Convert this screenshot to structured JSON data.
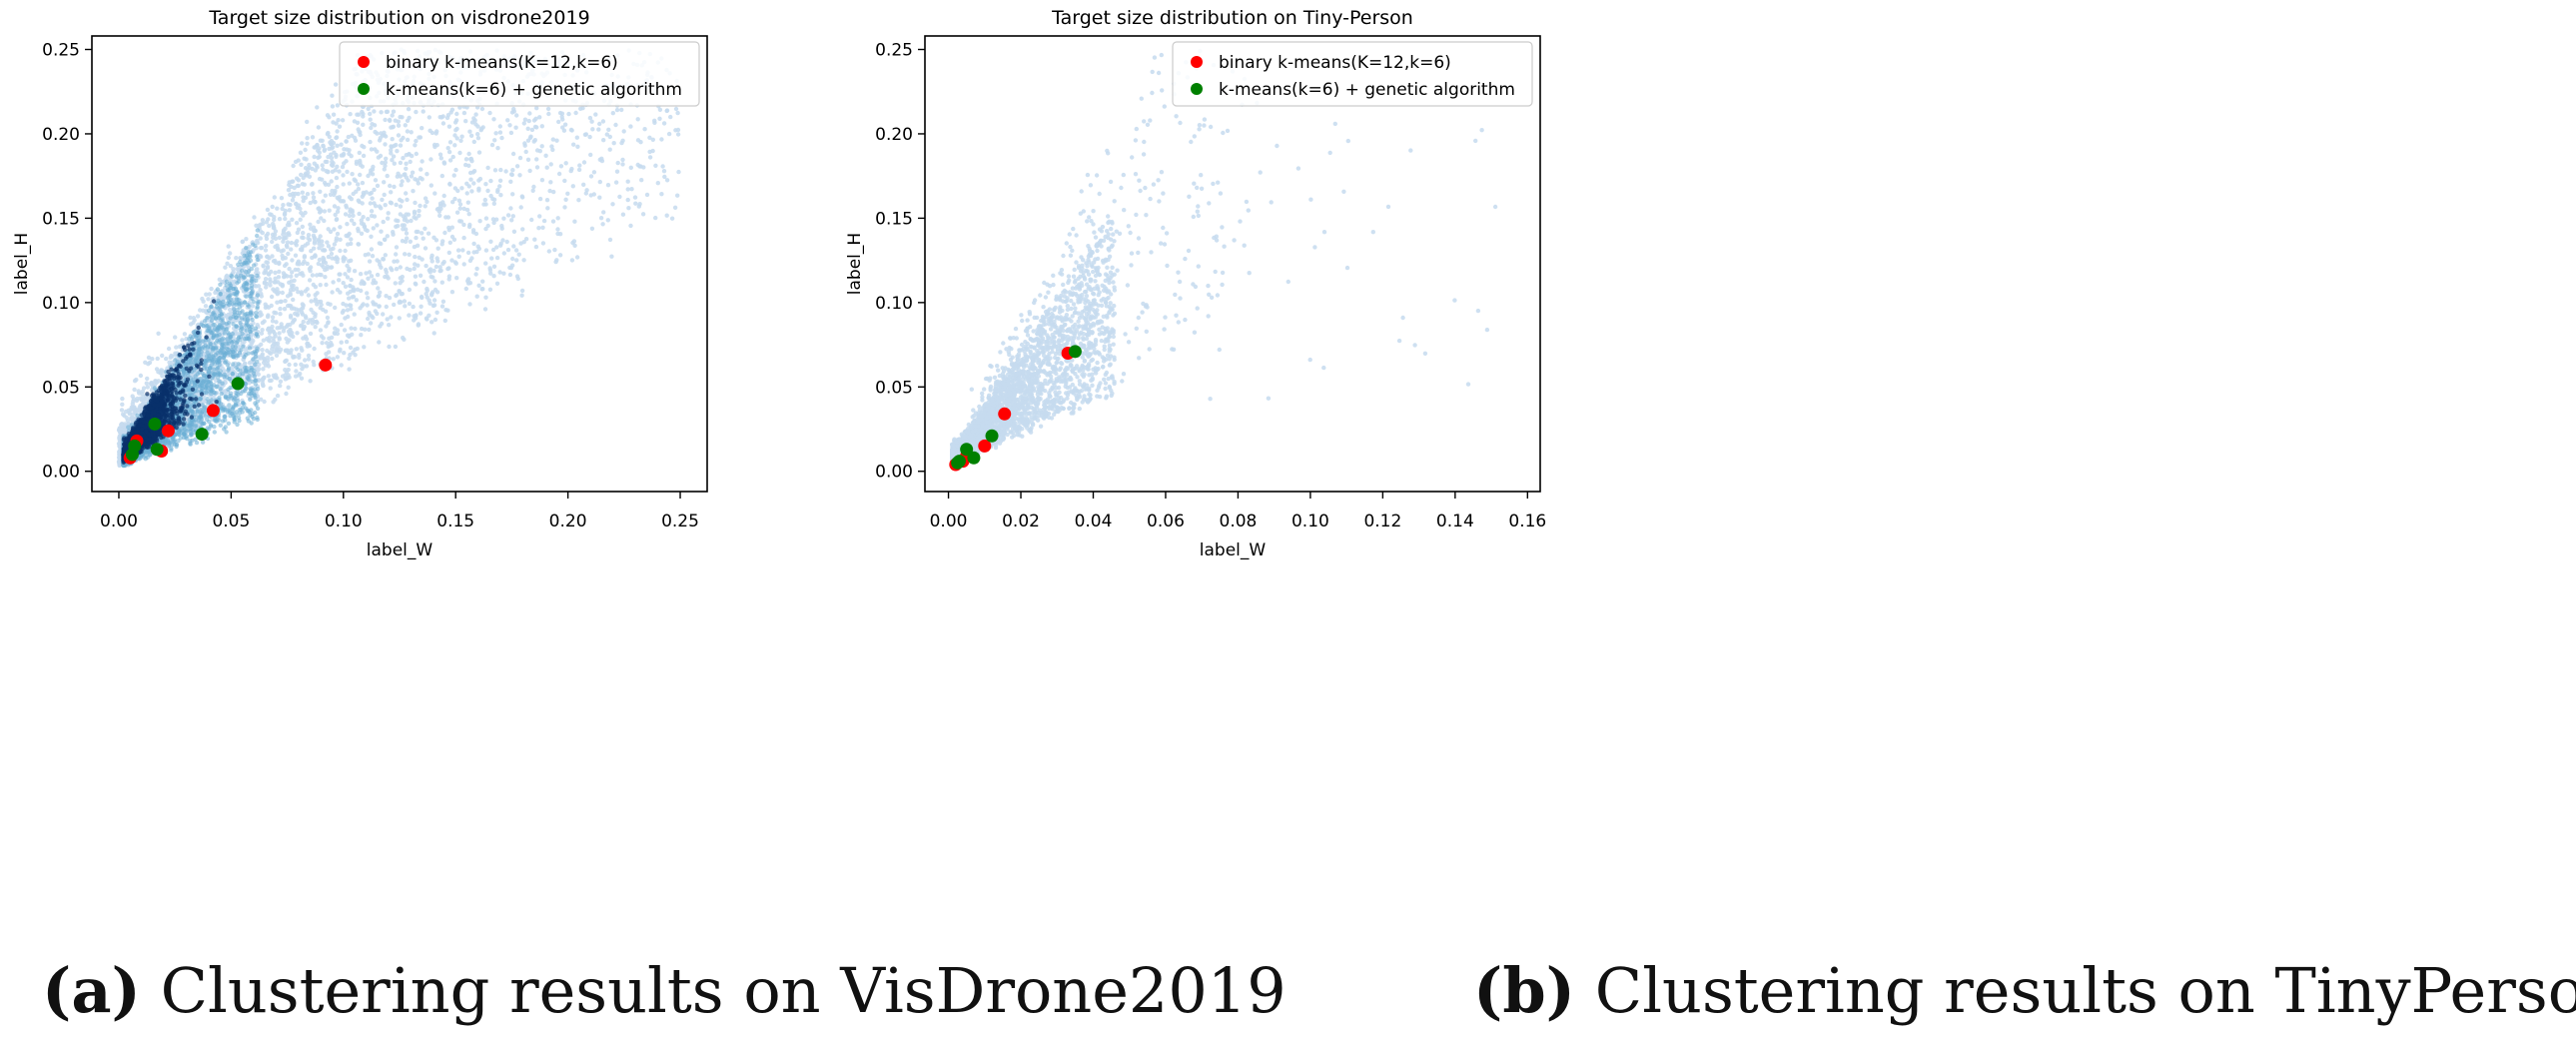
{
  "chart_data": [
    {
      "type": "scatter",
      "title": "Target size distribution on visdrone2019",
      "xlabel": "label_W",
      "ylabel": "label_H",
      "xlim": [
        -0.012,
        0.262
      ],
      "ylim": [
        -0.012,
        0.258
      ],
      "xticks": [
        0.0,
        0.05,
        0.1,
        0.15,
        0.2,
        0.25
      ],
      "xtick_labels": [
        "0.00",
        "0.05",
        "0.10",
        "0.15",
        "0.20",
        "0.25"
      ],
      "yticks": [
        0.0,
        0.05,
        0.1,
        0.15,
        0.2,
        0.25
      ],
      "ytick_labels": [
        "0.00",
        "0.05",
        "0.10",
        "0.15",
        "0.20",
        "0.25"
      ],
      "legend_position": "top-right",
      "background_density": {
        "description_color": "#c6dbef",
        "dense_color": "#08306b",
        "spread": "wide",
        "w_range": [
          0.0,
          0.25
        ],
        "h_range": [
          0.0,
          0.25
        ]
      },
      "series": [
        {
          "name": "binary k-means(K=12,k=6)",
          "color": "#ff0000",
          "points": [
            [
              0.005,
              0.008
            ],
            [
              0.008,
              0.018
            ],
            [
              0.019,
              0.012
            ],
            [
              0.022,
              0.024
            ],
            [
              0.042,
              0.036
            ],
            [
              0.092,
              0.063
            ]
          ]
        },
        {
          "name": "k-means(k=6) + genetic algorithm",
          "color": "#008000",
          "points": [
            [
              0.007,
              0.015
            ],
            [
              0.016,
              0.028
            ],
            [
              0.017,
              0.013
            ],
            [
              0.037,
              0.022
            ],
            [
              0.053,
              0.052
            ],
            [
              0.006,
              0.01
            ]
          ]
        }
      ]
    },
    {
      "type": "scatter",
      "title": "Target size distribution on Tiny-Person",
      "xlabel": "label_W",
      "ylabel": "label_H",
      "xlim": [
        -0.0065,
        0.1635
      ],
      "ylim": [
        -0.012,
        0.258
      ],
      "xticks": [
        0.0,
        0.02,
        0.04,
        0.06,
        0.08,
        0.1,
        0.12,
        0.14,
        0.16
      ],
      "xtick_labels": [
        "0.00",
        "0.02",
        "0.04",
        "0.06",
        "0.08",
        "0.10",
        "0.12",
        "0.14",
        "0.16"
      ],
      "yticks": [
        0.0,
        0.05,
        0.1,
        0.15,
        0.2,
        0.25
      ],
      "ytick_labels": [
        "0.00",
        "0.05",
        "0.10",
        "0.15",
        "0.20",
        "0.25"
      ],
      "legend_position": "top-right",
      "background_density": {
        "description_color": "#c6dbef",
        "dense_color": "#c6dbef",
        "spread": "narrow",
        "w_range": [
          0.0,
          0.155
        ],
        "h_range": [
          0.0,
          0.25
        ]
      },
      "series": [
        {
          "name": "binary k-means(K=12,k=6)",
          "color": "#ff0000",
          "points": [
            [
              0.002,
              0.004
            ],
            [
              0.005,
              0.009
            ],
            [
              0.01,
              0.015
            ],
            [
              0.0155,
              0.034
            ],
            [
              0.033,
              0.07
            ],
            [
              0.004,
              0.006
            ]
          ]
        },
        {
          "name": "k-means(k=6) + genetic algorithm",
          "color": "#008000",
          "points": [
            [
              0.003,
              0.006
            ],
            [
              0.005,
              0.013
            ],
            [
              0.007,
              0.008
            ],
            [
              0.012,
              0.021
            ],
            [
              0.035,
              0.071
            ],
            [
              0.0025,
              0.005
            ]
          ]
        }
      ]
    }
  ],
  "captions": [
    {
      "label": "(a)",
      "text": "Clustering results on VisDrone2019"
    },
    {
      "label": "(b)",
      "text": "Clustering results on TinyPerson"
    }
  ]
}
